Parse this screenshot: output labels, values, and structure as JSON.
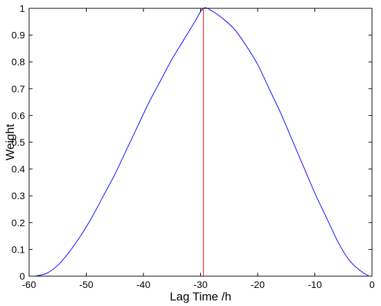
{
  "chart_data": {
    "type": "line",
    "title": "",
    "xlabel": "Lag Time /h",
    "ylabel": "Weight",
    "xlim": [
      -60,
      0
    ],
    "ylim": [
      0,
      1
    ],
    "xticks": [
      -60,
      -50,
      -40,
      -30,
      -20,
      -10,
      0
    ],
    "xtick_labels": [
      "-60",
      "-50",
      "-40",
      "-30",
      "-20",
      "-10",
      "0"
    ],
    "yticks": [
      0,
      0.1,
      0.2,
      0.3,
      0.4,
      0.5,
      0.6,
      0.7,
      0.8,
      0.9,
      1
    ],
    "ytick_labels": [
      "0",
      "0.1",
      "0.2",
      "0.3",
      "0.4",
      "0.5",
      "0.6",
      "0.7",
      "0.8",
      "0.9",
      "1"
    ],
    "grid": false,
    "colors": {
      "curve": "#0000ff",
      "marker": "#ff0000",
      "axes": "#000000"
    },
    "series": [
      {
        "x": [
          -59,
          -57,
          -55,
          -53,
          -51,
          -49,
          -47,
          -45,
          -43,
          -41,
          -39,
          -37,
          -35,
          -33,
          -31,
          -29.5,
          -28,
          -26,
          -24,
          -22,
          -20,
          -18,
          -16,
          -14,
          -12,
          -10,
          -8,
          -6,
          -4,
          -2,
          -0.5
        ],
        "y": [
          0.0,
          0.01,
          0.04,
          0.09,
          0.15,
          0.22,
          0.3,
          0.38,
          0.47,
          0.56,
          0.65,
          0.73,
          0.81,
          0.88,
          0.95,
          1.0,
          0.99,
          0.96,
          0.92,
          0.86,
          0.79,
          0.7,
          0.61,
          0.51,
          0.41,
          0.31,
          0.22,
          0.13,
          0.06,
          0.02,
          0.0
        ]
      }
    ],
    "vline": {
      "x": -29.5,
      "y": [
        0,
        1
      ]
    }
  }
}
